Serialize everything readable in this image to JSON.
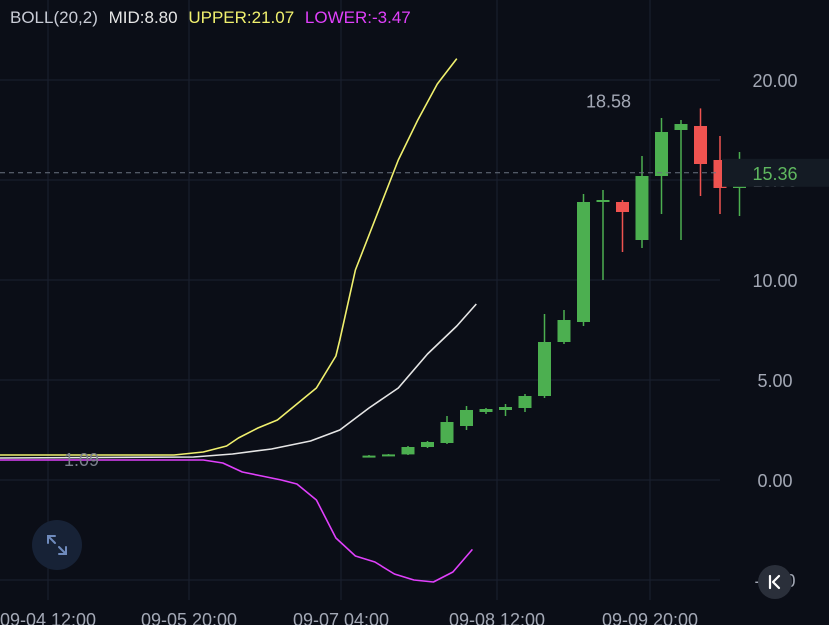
{
  "indicator": {
    "name": "BOLL(20,2)",
    "mid_label": "MID:8.80",
    "upper_label": "UPPER:21.07",
    "lower_label": "LOWER:-3.47",
    "colors": {
      "name": "#c9ccd6",
      "mid": "#e6e6e6",
      "upper": "#f0f06e",
      "lower": "#e040fb"
    }
  },
  "icons": {
    "expand": "expand-icon",
    "jump_latest": "jump-to-latest-icon"
  },
  "chart_data": {
    "type": "candlestick",
    "ylim": [
      -6.1,
      23
    ],
    "yticks": [
      "20.00",
      "15.00",
      "10.00",
      "5.00",
      "0.00",
      "-5.00"
    ],
    "xticks": [
      "09-04 12:00",
      "09-05 20:00",
      "09-07 04:00",
      "09-08 12:00",
      "09-09 20:00"
    ],
    "current_price": "15.36",
    "high_label": "18.58",
    "left_label": "1.09",
    "colors": {
      "up": "#4caf50",
      "down": "#ef5350",
      "grid": "#1b2130",
      "axis_text": "#a3a8b5",
      "last_price": "#5fb85f"
    },
    "candles": [
      {
        "o": 1.2,
        "h": 1.25,
        "l": 1.18,
        "c": 1.22
      },
      {
        "o": 1.22,
        "h": 1.3,
        "l": 1.2,
        "c": 1.28
      },
      {
        "o": 1.28,
        "h": 1.7,
        "l": 1.25,
        "c": 1.65
      },
      {
        "o": 1.65,
        "h": 1.95,
        "l": 1.6,
        "c": 1.9
      },
      {
        "o": 1.85,
        "h": 3.2,
        "l": 1.8,
        "c": 2.9
      },
      {
        "o": 2.7,
        "h": 3.7,
        "l": 2.5,
        "c": 3.5
      },
      {
        "o": 3.4,
        "h": 3.6,
        "l": 3.3,
        "c": 3.55
      },
      {
        "o": 3.5,
        "h": 3.8,
        "l": 3.2,
        "c": 3.65
      },
      {
        "o": 3.6,
        "h": 4.3,
        "l": 3.4,
        "c": 4.2
      },
      {
        "o": 4.2,
        "h": 8.3,
        "l": 4.1,
        "c": 6.9
      },
      {
        "o": 6.9,
        "h": 8.5,
        "l": 6.8,
        "c": 8.0
      },
      {
        "o": 7.9,
        "h": 14.3,
        "l": 7.7,
        "c": 13.9
      },
      {
        "o": 13.9,
        "h": 14.5,
        "l": 10.0,
        "c": 14.0
      },
      {
        "o": 13.9,
        "h": 14.0,
        "l": 11.4,
        "c": 13.4
      },
      {
        "o": 12.0,
        "h": 16.2,
        "l": 11.6,
        "c": 15.2
      },
      {
        "o": 15.2,
        "h": 18.1,
        "l": 13.3,
        "c": 17.4
      },
      {
        "o": 17.5,
        "h": 18.0,
        "l": 12.0,
        "c": 17.8
      },
      {
        "o": 17.7,
        "h": 18.58,
        "l": 14.2,
        "c": 15.8
      },
      {
        "o": 16.0,
        "h": 17.2,
        "l": 13.3,
        "c": 14.6
      },
      {
        "o": 14.6,
        "h": 16.4,
        "l": 13.2,
        "c": 15.36
      }
    ],
    "series": [
      {
        "name": "UPPER",
        "color": "#f0f06e",
        "points": [
          [
            -1,
            1.25
          ],
          [
            8,
            1.25
          ],
          [
            9.5,
            1.4
          ],
          [
            10.7,
            1.7
          ],
          [
            11.3,
            2.1
          ],
          [
            12.3,
            2.6
          ],
          [
            13.3,
            3.0
          ],
          [
            14.3,
            3.8
          ],
          [
            15.3,
            4.6
          ],
          [
            16.3,
            6.2
          ],
          [
            16.5,
            7.0
          ],
          [
            17.3,
            10.5
          ],
          [
            18.3,
            13.0
          ],
          [
            19.5,
            16.0
          ],
          [
            20.5,
            18.0
          ],
          [
            21.5,
            19.8
          ],
          [
            22.5,
            21.07
          ]
        ]
      },
      {
        "name": "MID",
        "color": "#e6e6e6",
        "points": [
          [
            -1,
            1.1
          ],
          [
            9,
            1.15
          ],
          [
            11,
            1.3
          ],
          [
            13,
            1.55
          ],
          [
            15,
            1.95
          ],
          [
            16.5,
            2.5
          ],
          [
            18,
            3.6
          ],
          [
            19.5,
            4.6
          ],
          [
            21,
            6.3
          ],
          [
            22.5,
            7.7
          ],
          [
            23.5,
            8.8
          ]
        ]
      },
      {
        "name": "LOWER",
        "color": "#e040fb",
        "points": [
          [
            -1,
            1.0
          ],
          [
            9.5,
            1.0
          ],
          [
            10.5,
            0.85
          ],
          [
            11.5,
            0.4
          ],
          [
            12.5,
            0.2
          ],
          [
            13.5,
            0.0
          ],
          [
            14.3,
            -0.2
          ],
          [
            15.3,
            -1.0
          ],
          [
            16.3,
            -2.9
          ],
          [
            17.3,
            -3.8
          ],
          [
            18.3,
            -4.1
          ],
          [
            19.3,
            -4.7
          ],
          [
            20.3,
            -5.0
          ],
          [
            21.3,
            -5.1
          ],
          [
            22.3,
            -4.6
          ],
          [
            23.3,
            -3.47
          ]
        ]
      }
    ]
  }
}
